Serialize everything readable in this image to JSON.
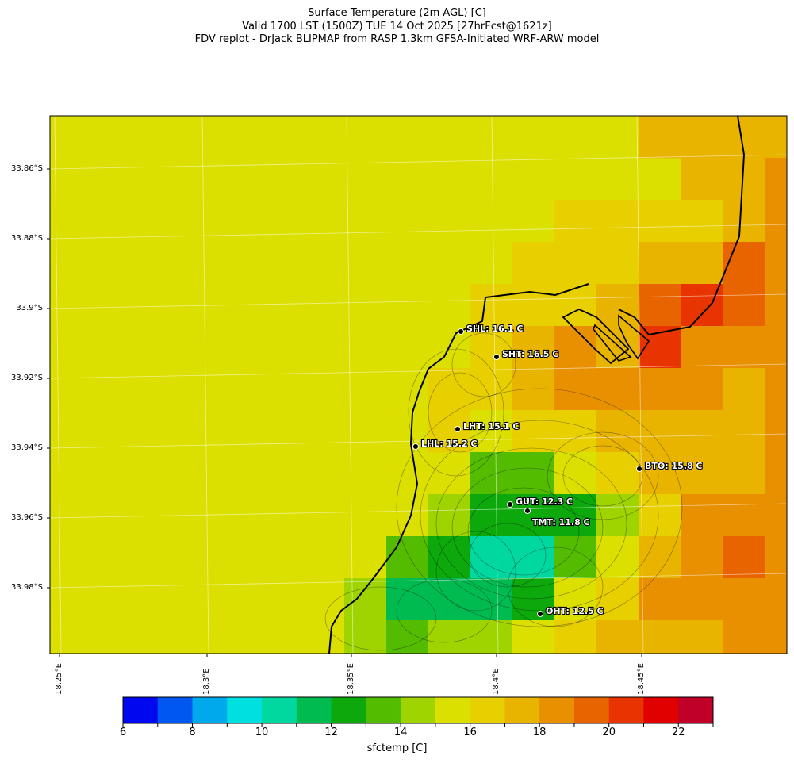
{
  "title": {
    "line1": "Surface Temperature (2m AGL) [C]",
    "line2": "Valid 1700 LST (1500Z) TUE 14 Oct 2025 [27hrFcst@1621z]",
    "line3": "FDV replot - DrJack BLIPMAP from RASP 1.3km GFSA-Initiated WRF-ARW model"
  },
  "map": {
    "lat_labels": [
      "33.86°S",
      "33.88°S",
      "33.9°S",
      "33.92°S",
      "33.94°S",
      "33.96°S",
      "33.98°S"
    ],
    "lon_labels": [
      "18.25°E",
      "18.3°E",
      "18.35°E",
      "18.4°E",
      "18.45°E"
    ],
    "stations": [
      {
        "id": "SHL",
        "value": 16.1,
        "label": "SHL: 16.1 C"
      },
      {
        "id": "SHT",
        "value": 16.5,
        "label": "SHT: 16.5 C"
      },
      {
        "id": "LHT",
        "value": 15.1,
        "label": "LHT: 15.1 C"
      },
      {
        "id": "LHL",
        "value": 15.2,
        "label": "LHL: 15.2 C"
      },
      {
        "id": "BTO",
        "value": 15.8,
        "label": "BTO: 15.8 C"
      },
      {
        "id": "GUT",
        "value": 12.3,
        "label": "GUT: 12.3 C"
      },
      {
        "id": "TMT",
        "value": 11.8,
        "label": "TMT: 11.8 C"
      },
      {
        "id": "OHT",
        "value": 12.5,
        "label": "OHT: 12.5 C"
      }
    ]
  },
  "colorbar": {
    "ticks": [
      "6",
      "8",
      "10",
      "12",
      "14",
      "16",
      "18",
      "20",
      "22"
    ],
    "label": "sfctemp [C]",
    "colors": [
      "#0008f0",
      "#0058f0",
      "#00a8ec",
      "#00e0e0",
      "#00d8a0",
      "#00bc50",
      "#0ca80c",
      "#54bc00",
      "#a0d400",
      "#dce000",
      "#e8d000",
      "#e8b400",
      "#e89000",
      "#e86400",
      "#e83400",
      "#e00000",
      "#c00028"
    ]
  }
}
